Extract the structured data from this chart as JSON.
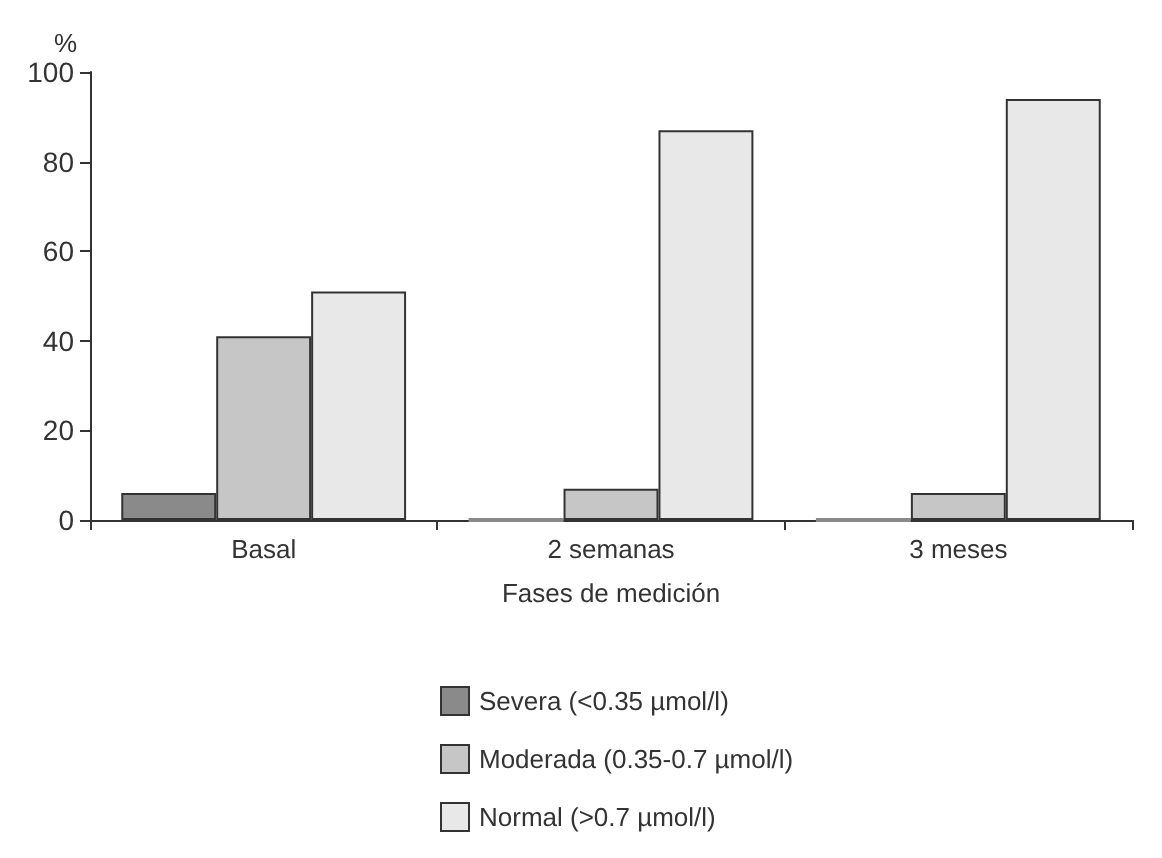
{
  "chart_data": {
    "type": "bar",
    "xlabel": "Fases de medición",
    "ylabel": "%",
    "categories": [
      "Basal",
      "2 semanas",
      "3 meses"
    ],
    "series": [
      {
        "name": "Severa (<0.35 µmol/l)",
        "color": "#8a8a8a",
        "values": [
          6,
          0,
          0
        ]
      },
      {
        "name": "Moderada (0.35-0.7 µmol/l)",
        "color": "#c6c6c6",
        "values": [
          41,
          7,
          6
        ]
      },
      {
        "name": "Normal (>0.7 µmol/l)",
        "color": "#e8e8e8",
        "values": [
          51,
          87,
          94
        ]
      }
    ],
    "ylim": [
      0,
      100
    ],
    "yticks": [
      0,
      20,
      40,
      60,
      80,
      100
    ],
    "grid": false,
    "legend": "bottom"
  }
}
